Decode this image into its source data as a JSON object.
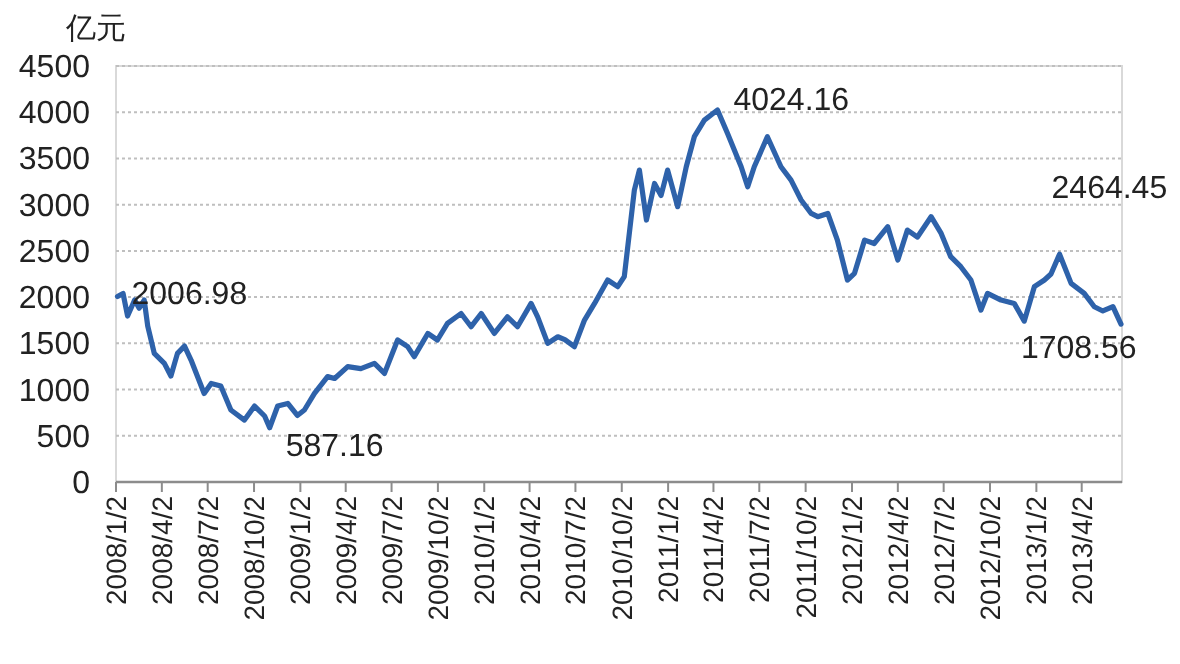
{
  "chart_data": {
    "type": "line",
    "ylabel": "亿元",
    "x": [
      "2008-01-05",
      "2008-01-16",
      "2008-01-25",
      "2008-02-08",
      "2008-02-17",
      "2008-02-27",
      "2008-03-05",
      "2008-03-18",
      "2008-04-07",
      "2008-04-20",
      "2008-05-03",
      "2008-05-17",
      "2008-05-30",
      "2008-06-25",
      "2008-07-09",
      "2008-07-28",
      "2008-08-17",
      "2008-09-13",
      "2008-10-03",
      "2008-10-23",
      "2008-11-02",
      "2008-11-18",
      "2008-12-08",
      "2008-12-27",
      "2009-01-10",
      "2009-01-30",
      "2009-02-25",
      "2009-03-11",
      "2009-04-06",
      "2009-05-02",
      "2009-05-29",
      "2009-06-18",
      "2009-07-14",
      "2009-08-03",
      "2009-08-16",
      "2009-09-12",
      "2009-10-01",
      "2009-10-21",
      "2009-11-17",
      "2009-12-07",
      "2009-12-27",
      "2010-01-22",
      "2010-02-17",
      "2010-03-09",
      "2010-04-05",
      "2010-04-18",
      "2010-05-08",
      "2010-05-28",
      "2010-06-11",
      "2010-06-30",
      "2010-07-20",
      "2010-08-09",
      "2010-09-04",
      "2010-09-24",
      "2010-10-07",
      "2010-10-27",
      "2010-11-06",
      "2010-11-20",
      "2010-12-06",
      "2010-12-19",
      "2011-01-01",
      "2011-01-21",
      "2011-02-07",
      "2011-02-23",
      "2011-03-15",
      "2011-04-10",
      "2011-04-30",
      "2011-05-27",
      "2011-06-09",
      "2011-06-22",
      "2011-07-18",
      "2011-08-14",
      "2011-09-03",
      "2011-09-23",
      "2011-10-13",
      "2011-10-26",
      "2011-11-15",
      "2011-12-04",
      "2011-12-24",
      "2012-01-07",
      "2012-01-27",
      "2012-02-15",
      "2012-03-13",
      "2012-04-02",
      "2012-04-21",
      "2012-05-11",
      "2012-06-07",
      "2012-06-27",
      "2012-07-16",
      "2012-08-05",
      "2012-08-25",
      "2012-09-14",
      "2012-09-27",
      "2012-10-24",
      "2012-11-19",
      "2012-12-09",
      "2012-12-29",
      "2013-01-18",
      "2013-01-31",
      "2013-02-17",
      "2013-03-12",
      "2013-04-07",
      "2013-04-27",
      "2013-05-14",
      "2013-06-03",
      "2013-06-19"
    ],
    "series": [
      {
        "color": "#2e62aa",
        "values": [
          2006.98,
          2040,
          1795,
          1968,
          1880,
          1968,
          1687,
          1391,
          1283,
          1146,
          1391,
          1470,
          1319,
          958,
          1066,
          1038,
          779,
          670,
          822,
          714,
          587.16,
          822,
          850,
          720,
          779,
          958,
          1140,
          1120,
          1248,
          1226,
          1283,
          1175,
          1536,
          1464,
          1356,
          1607,
          1536,
          1715,
          1823,
          1680,
          1823,
          1607,
          1787,
          1680,
          1932,
          1787,
          1500,
          1571,
          1540,
          1464,
          1752,
          1932,
          2185,
          2113,
          2221,
          3158,
          3374,
          2834,
          3229,
          3100,
          3374,
          2978,
          3410,
          3735,
          3915,
          4024.16,
          3770,
          3410,
          3194,
          3410,
          3735,
          3410,
          3266,
          3050,
          2905,
          2870,
          2905,
          2617,
          2185,
          2257,
          2617,
          2580,
          2762,
          2401,
          2725,
          2650,
          2870,
          2689,
          2437,
          2329,
          2185,
          1860,
          2040,
          1968,
          1932,
          1740,
          2113,
          2185,
          2250,
          2464.45,
          2149,
          2040,
          1896,
          1850,
          1896,
          1708.56
        ]
      }
    ],
    "ylim": [
      0,
      4500
    ],
    "yticks": [
      0,
      500,
      1000,
      1500,
      2000,
      2500,
      3000,
      3500,
      4000,
      4500
    ],
    "xlim": [
      "2008-01-02",
      "2013-06-21"
    ],
    "xticks": [
      {
        "value": "2008-01-02",
        "label": "2008/1/2"
      },
      {
        "value": "2008-04-02",
        "label": "2008/4/2"
      },
      {
        "value": "2008-07-02",
        "label": "2008/7/2"
      },
      {
        "value": "2008-10-02",
        "label": "2008/10/2"
      },
      {
        "value": "2009-01-02",
        "label": "2009/1/2"
      },
      {
        "value": "2009-04-02",
        "label": "2009/4/2"
      },
      {
        "value": "2009-07-02",
        "label": "2009/7/2"
      },
      {
        "value": "2009-10-02",
        "label": "2009/10/2"
      },
      {
        "value": "2010-01-02",
        "label": "2010/1/2"
      },
      {
        "value": "2010-04-02",
        "label": "2010/4/2"
      },
      {
        "value": "2010-07-02",
        "label": "2010/7/2"
      },
      {
        "value": "2010-10-02",
        "label": "2010/10/2"
      },
      {
        "value": "2011-01-02",
        "label": "2011/1/2"
      },
      {
        "value": "2011-04-02",
        "label": "2011/4/2"
      },
      {
        "value": "2011-07-02",
        "label": "2011/7/2"
      },
      {
        "value": "2011-10-02",
        "label": "2011/10/2"
      },
      {
        "value": "2012-01-02",
        "label": "2012/1/2"
      },
      {
        "value": "2012-04-02",
        "label": "2012/4/2"
      },
      {
        "value": "2012-07-02",
        "label": "2012/7/2"
      },
      {
        "value": "2012-10-02",
        "label": "2012/10/2"
      },
      {
        "value": "2013-01-02",
        "label": "2013/1/2"
      },
      {
        "value": "2013-04-02",
        "label": "2013/4/2"
      }
    ],
    "grid": "y",
    "marker": "none",
    "line_style": "solid",
    "annotations": [
      {
        "text": "2006.98",
        "x": "2008-01-05",
        "y": 2006.98
      },
      {
        "text": "587.16",
        "x": "2008-11-02",
        "y": 587.16
      },
      {
        "text": "4024.16",
        "x": "2011-04-10",
        "y": 4024.16
      },
      {
        "text": "2464.45",
        "x": "2013-02-17",
        "y": 2464.45
      },
      {
        "text": "1708.56",
        "x": "2013-06-19",
        "y": 1708.56
      }
    ]
  }
}
